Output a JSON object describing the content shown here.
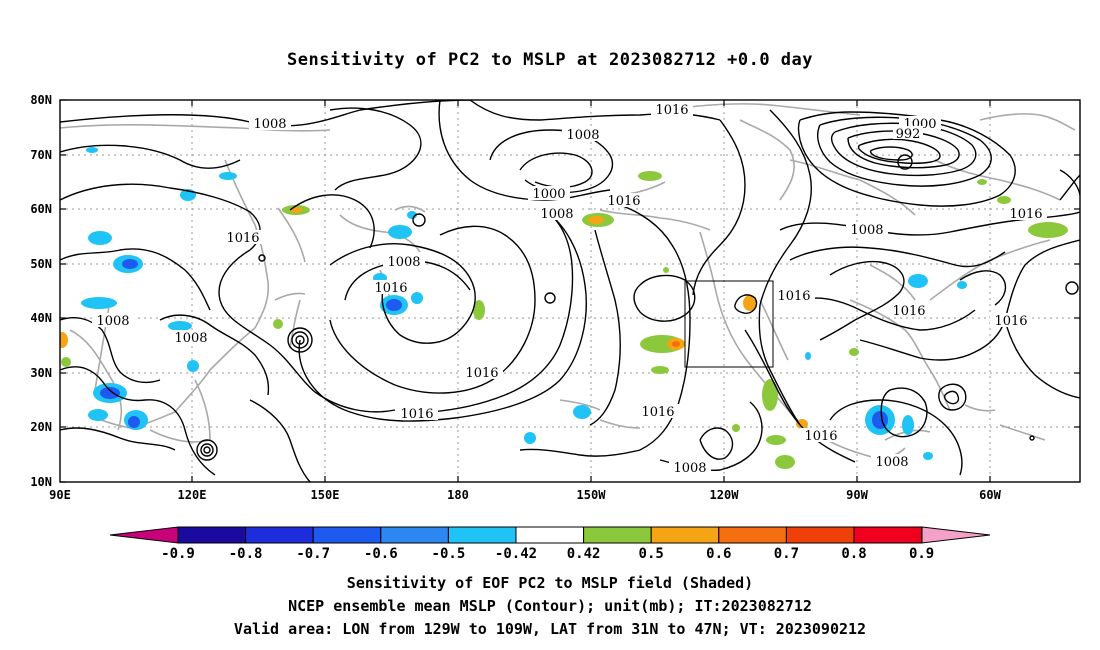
{
  "title": "Sensitivity of PC2 to MSLP at 2023082712 +0.0 day",
  "map": {
    "lat_labels": [
      "80N",
      "70N",
      "60N",
      "50N",
      "40N",
      "30N",
      "20N",
      "10N"
    ],
    "lon_labels": [
      "90E",
      "120E",
      "150E",
      "180",
      "150W",
      "120W",
      "90W",
      "60W"
    ],
    "contour_labels": [
      {
        "text": "1008"
      },
      {
        "text": "1016"
      },
      {
        "text": "1008"
      },
      {
        "text": "1008"
      },
      {
        "text": "1016"
      },
      {
        "text": "1008"
      },
      {
        "text": "1008"
      },
      {
        "text": "1016"
      },
      {
        "text": "1000"
      },
      {
        "text": "1008"
      },
      {
        "text": "1016"
      },
      {
        "text": "1016"
      },
      {
        "text": "1016"
      },
      {
        "text": "1016"
      },
      {
        "text": "1008"
      },
      {
        "text": "1000"
      },
      {
        "text": "992"
      },
      {
        "text": "1008"
      },
      {
        "text": "1016"
      },
      {
        "text": "1016"
      },
      {
        "text": "1016"
      },
      {
        "text": "1016"
      },
      {
        "text": "1016"
      },
      {
        "text": "1008"
      }
    ],
    "valid_box": {
      "lon": "129W to 109W",
      "lat": "31N to 47N"
    }
  },
  "colorbar": {
    "ticks": [
      "-0.9",
      "-0.8",
      "-0.7",
      "-0.6",
      "-0.5",
      "-0.42",
      "0.42",
      "0.5",
      "0.6",
      "0.7",
      "0.8",
      "0.9"
    ],
    "colors": {
      "below": "#c8007a",
      "bins": [
        "#1a0aa0",
        "#1e2ddc",
        "#1e5af0",
        "#2c87f0",
        "#1fc3f5",
        "#ffffff",
        "#8cc83c",
        "#f5a514",
        "#f56e0f",
        "#f0400a",
        "#f0001e"
      ],
      "above": "#f5a0c8"
    }
  },
  "captions": {
    "line1": "Sensitivity of EOF PC2 to MSLP field (Shaded)",
    "line2": "NCEP ensemble mean MSLP (Contour); unit(mb); IT:2023082712",
    "line3": "Valid area: LON from 129W to 109W, LAT from 31N to 47N; VT: 2023090212"
  }
}
